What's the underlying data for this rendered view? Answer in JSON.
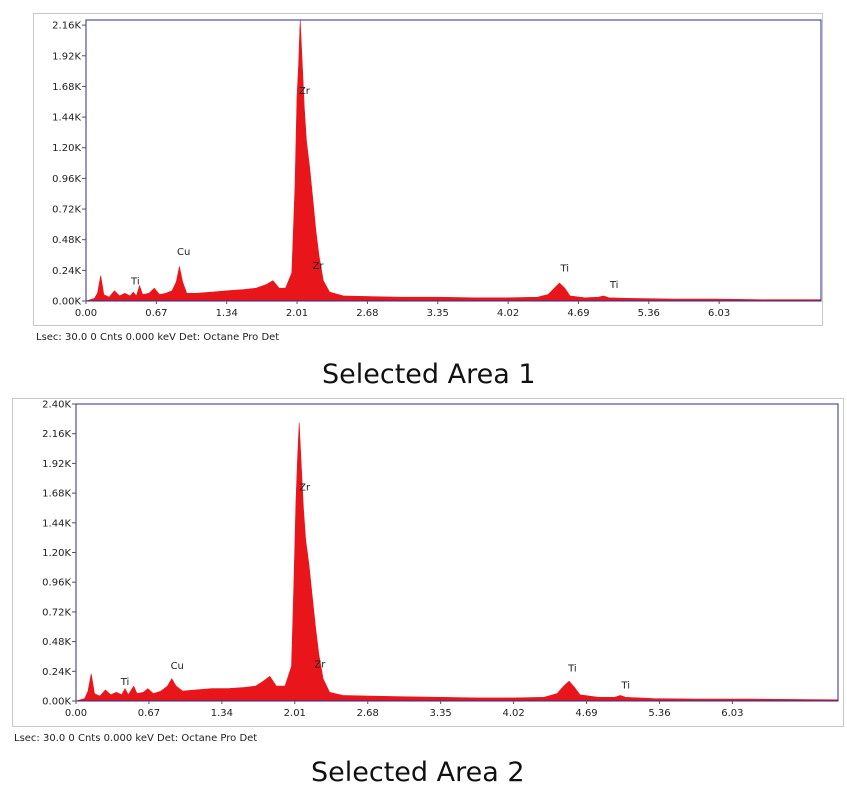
{
  "chart_data": [
    {
      "type": "area",
      "title": "",
      "caption": "Selected Area 1",
      "status": "Lsec: 30.0 0 Cnts  0.000 keV Det: Octane Pro Det",
      "xlabel": "",
      "ylabel": "",
      "xlim": [
        0.0,
        7.0
      ],
      "ylim": [
        0,
        2.2
      ],
      "x_ticks": [
        0.0,
        0.67,
        1.34,
        2.01,
        2.68,
        3.35,
        4.02,
        4.69,
        5.36,
        6.03
      ],
      "x_tick_labels": [
        "0.00",
        "0.67",
        "1.34",
        "2.01",
        "2.68",
        "3.35",
        "4.02",
        "4.69",
        "5.36",
        "6.03"
      ],
      "y_ticks": [
        0,
        0.24,
        0.48,
        0.72,
        0.96,
        1.2,
        1.44,
        1.68,
        1.92,
        2.16
      ],
      "y_tick_labels": [
        "0.00K",
        "0.24K",
        "0.48K",
        "0.72K",
        "0.96K",
        "1.20K",
        "1.44K",
        "1.68K",
        "1.92K",
        "2.16K"
      ],
      "grid": false,
      "color": "#e8161b",
      "frame_color": "#2b2b8c",
      "spectrum": [
        [
          0.0,
          0.0
        ],
        [
          0.08,
          0.02
        ],
        [
          0.11,
          0.06
        ],
        [
          0.14,
          0.2
        ],
        [
          0.17,
          0.05
        ],
        [
          0.22,
          0.03
        ],
        [
          0.27,
          0.08
        ],
        [
          0.32,
          0.04
        ],
        [
          0.37,
          0.06
        ],
        [
          0.42,
          0.04
        ],
        [
          0.45,
          0.07
        ],
        [
          0.48,
          0.04
        ],
        [
          0.51,
          0.12
        ],
        [
          0.54,
          0.05
        ],
        [
          0.6,
          0.06
        ],
        [
          0.65,
          0.1
        ],
        [
          0.7,
          0.05
        ],
        [
          0.76,
          0.06
        ],
        [
          0.82,
          0.08
        ],
        [
          0.86,
          0.15
        ],
        [
          0.89,
          0.27
        ],
        [
          0.92,
          0.15
        ],
        [
          0.96,
          0.06
        ],
        [
          1.05,
          0.06
        ],
        [
          1.2,
          0.07
        ],
        [
          1.34,
          0.08
        ],
        [
          1.5,
          0.09
        ],
        [
          1.62,
          0.1
        ],
        [
          1.72,
          0.13
        ],
        [
          1.78,
          0.16
        ],
        [
          1.84,
          0.1
        ],
        [
          1.9,
          0.1
        ],
        [
          1.96,
          0.22
        ],
        [
          1.99,
          0.9
        ],
        [
          2.01,
          1.6
        ],
        [
          2.025,
          1.85
        ],
        [
          2.04,
          2.2
        ],
        [
          2.06,
          1.85
        ],
        [
          2.08,
          1.5
        ],
        [
          2.1,
          1.25
        ],
        [
          2.13,
          1.05
        ],
        [
          2.16,
          0.8
        ],
        [
          2.19,
          0.55
        ],
        [
          2.22,
          0.35
        ],
        [
          2.26,
          0.16
        ],
        [
          2.32,
          0.07
        ],
        [
          2.45,
          0.04
        ],
        [
          2.7,
          0.035
        ],
        [
          3.0,
          0.03
        ],
        [
          3.35,
          0.03
        ],
        [
          3.7,
          0.025
        ],
        [
          4.02,
          0.025
        ],
        [
          4.3,
          0.03
        ],
        [
          4.4,
          0.05
        ],
        [
          4.46,
          0.1
        ],
        [
          4.51,
          0.14
        ],
        [
          4.56,
          0.1
        ],
        [
          4.61,
          0.04
        ],
        [
          4.75,
          0.025
        ],
        [
          4.88,
          0.03
        ],
        [
          4.93,
          0.04
        ],
        [
          4.98,
          0.025
        ],
        [
          5.2,
          0.02
        ],
        [
          5.6,
          0.015
        ],
        [
          6.0,
          0.015
        ],
        [
          6.5,
          0.01
        ],
        [
          7.0,
          0.01
        ]
      ],
      "annotations": [
        {
          "text": "Cu",
          "x": 0.93,
          "y": 0.36
        },
        {
          "text": "Ti",
          "x": 0.47,
          "y": 0.13
        },
        {
          "text": "Zr",
          "x": 2.08,
          "y": 1.62
        },
        {
          "text": "Zr",
          "x": 2.21,
          "y": 0.25
        },
        {
          "text": "Ti",
          "x": 4.56,
          "y": 0.23
        },
        {
          "text": "Ti",
          "x": 5.03,
          "y": 0.1
        }
      ]
    },
    {
      "type": "area",
      "title": "",
      "caption": "Selected Area 2",
      "status": "Lsec: 30.0 0 Cnts  0.000 keV Det: Octane Pro Det",
      "xlabel": "",
      "ylabel": "",
      "xlim": [
        0.0,
        7.0
      ],
      "ylim": [
        0,
        2.4
      ],
      "x_ticks": [
        0.0,
        0.67,
        1.34,
        2.01,
        2.68,
        3.35,
        4.02,
        4.69,
        5.36,
        6.03
      ],
      "x_tick_labels": [
        "0.00",
        "0.67",
        "1.34",
        "2.01",
        "2.68",
        "3.35",
        "4.02",
        "4.69",
        "5.36",
        "6.03"
      ],
      "y_ticks": [
        0,
        0.24,
        0.48,
        0.72,
        0.96,
        1.2,
        1.44,
        1.68,
        1.92,
        2.16,
        2.4
      ],
      "y_tick_labels": [
        "0.00K",
        "0.24K",
        "0.48K",
        "0.72K",
        "0.96K",
        "1.20K",
        "1.44K",
        "1.68K",
        "1.92K",
        "2.16K",
        "2.40K"
      ],
      "grid": false,
      "color": "#e8161b",
      "frame_color": "#2b2b8c",
      "spectrum": [
        [
          0.0,
          0.0
        ],
        [
          0.08,
          0.02
        ],
        [
          0.11,
          0.08
        ],
        [
          0.14,
          0.22
        ],
        [
          0.17,
          0.06
        ],
        [
          0.22,
          0.04
        ],
        [
          0.27,
          0.09
        ],
        [
          0.32,
          0.05
        ],
        [
          0.37,
          0.07
        ],
        [
          0.42,
          0.05
        ],
        [
          0.45,
          0.1
        ],
        [
          0.48,
          0.05
        ],
        [
          0.53,
          0.12
        ],
        [
          0.56,
          0.06
        ],
        [
          0.62,
          0.07
        ],
        [
          0.66,
          0.1
        ],
        [
          0.71,
          0.06
        ],
        [
          0.78,
          0.08
        ],
        [
          0.84,
          0.12
        ],
        [
          0.88,
          0.18
        ],
        [
          0.92,
          0.12
        ],
        [
          0.98,
          0.08
        ],
        [
          1.1,
          0.09
        ],
        [
          1.25,
          0.1
        ],
        [
          1.4,
          0.1
        ],
        [
          1.55,
          0.11
        ],
        [
          1.65,
          0.12
        ],
        [
          1.72,
          0.16
        ],
        [
          1.78,
          0.2
        ],
        [
          1.84,
          0.12
        ],
        [
          1.92,
          0.12
        ],
        [
          1.98,
          0.28
        ],
        [
          2.0,
          0.9
        ],
        [
          2.02,
          1.6
        ],
        [
          2.035,
          1.95
        ],
        [
          2.05,
          2.25
        ],
        [
          2.07,
          1.9
        ],
        [
          2.09,
          1.55
        ],
        [
          2.11,
          1.3
        ],
        [
          2.14,
          1.1
        ],
        [
          2.17,
          0.85
        ],
        [
          2.2,
          0.6
        ],
        [
          2.23,
          0.38
        ],
        [
          2.27,
          0.18
        ],
        [
          2.33,
          0.07
        ],
        [
          2.45,
          0.045
        ],
        [
          2.7,
          0.04
        ],
        [
          3.0,
          0.035
        ],
        [
          3.35,
          0.03
        ],
        [
          3.7,
          0.025
        ],
        [
          4.02,
          0.025
        ],
        [
          4.3,
          0.03
        ],
        [
          4.42,
          0.06
        ],
        [
          4.48,
          0.12
        ],
        [
          4.53,
          0.16
        ],
        [
          4.58,
          0.11
        ],
        [
          4.63,
          0.05
        ],
        [
          4.8,
          0.03
        ],
        [
          4.95,
          0.03
        ],
        [
          5.0,
          0.045
        ],
        [
          5.05,
          0.03
        ],
        [
          5.3,
          0.02
        ],
        [
          5.7,
          0.015
        ],
        [
          6.2,
          0.015
        ],
        [
          7.0,
          0.01
        ]
      ],
      "annotations": [
        {
          "text": "Cu",
          "x": 0.93,
          "y": 0.26
        },
        {
          "text": "Ti",
          "x": 0.45,
          "y": 0.13
        },
        {
          "text": "Zr",
          "x": 2.1,
          "y": 1.7
        },
        {
          "text": "Zr",
          "x": 2.24,
          "y": 0.27
        },
        {
          "text": "Ti",
          "x": 4.56,
          "y": 0.24
        },
        {
          "text": "Ti",
          "x": 5.05,
          "y": 0.1
        }
      ]
    }
  ]
}
